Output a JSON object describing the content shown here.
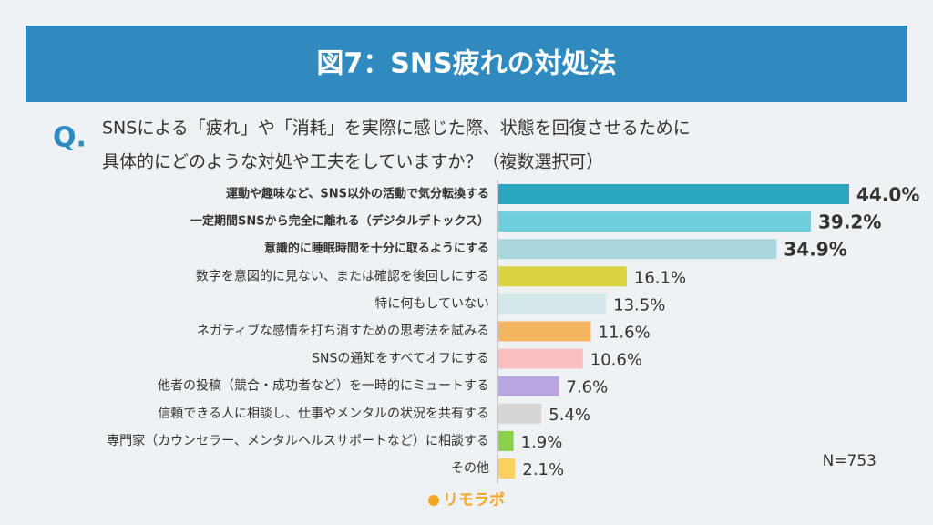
{
  "chart_data": {
    "type": "bar",
    "orientation": "horizontal",
    "title": "図7：SNS疲れの対処法",
    "question_marker": "Q.",
    "question": [
      "SNSによる「疲れ」や「消耗」を実際に感じた際、状態を回復させるために",
      "具体的にどのような対処や工夫をしていますか？（複数選択可）"
    ],
    "categories": [
      "運動や趣味など、SNS以外の活動で気分転換する",
      "一定期間SNSから完全に離れる（デジタルデトックス）",
      "意識的に睡眠時間を十分に取るようにする",
      "数字を意図的に見ない、または確認を後回しにする",
      "特に何もしていない",
      "ネガティブな感情を打ち消すための思考法を試みる",
      "SNSの通知をすべてオフにする",
      "他者の投稿（競合・成功者など）を一時的にミュートする",
      "信頼できる人に相談し、仕事やメンタルの状況を共有する",
      "専門家（カウンセラー、メンタルヘルスサポートなど）に相談する",
      "その他"
    ],
    "values": [
      44.0,
      39.2,
      34.9,
      16.1,
      13.5,
      11.6,
      10.6,
      7.6,
      5.4,
      1.9,
      2.1
    ],
    "value_labels": [
      "44.0%",
      "39.2%",
      "34.9%",
      "16.1%",
      "13.5%",
      "11.6%",
      "10.6%",
      "7.6%",
      "5.4%",
      "1.9%",
      "2.1%"
    ],
    "colors": [
      "#2aa7bf",
      "#6fcfdc",
      "#a9d7dd",
      "#d9d440",
      "#d4e8ea",
      "#f5b460",
      "#f9bfbf",
      "#b9a6e0",
      "#d6d6d6",
      "#8bd04a",
      "#f9d160"
    ],
    "highlight": [
      true,
      true,
      true,
      false,
      false,
      false,
      false,
      false,
      false,
      false,
      false
    ],
    "note": "N=753",
    "logo": "リモラボ"
  }
}
